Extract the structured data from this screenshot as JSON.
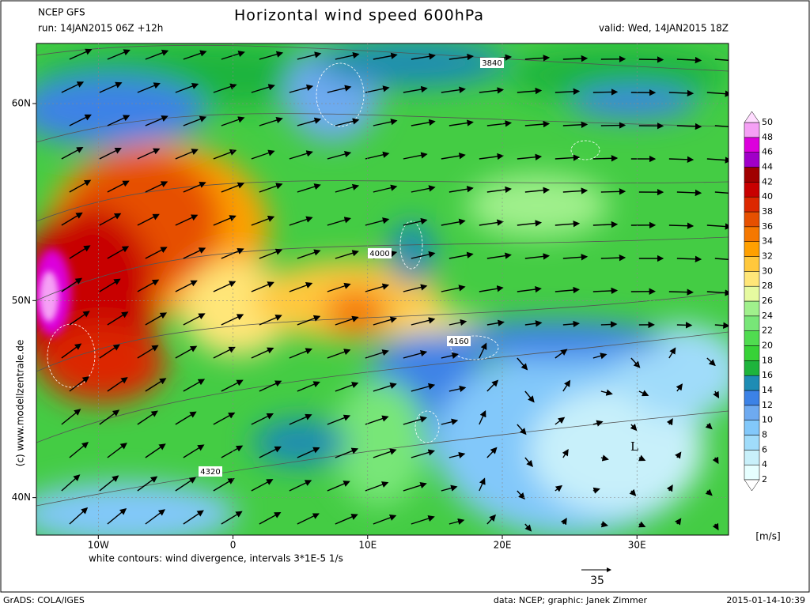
{
  "header": {
    "model": "NCEP GFS",
    "run": "run: 14JAN2015 06Z +12h",
    "title": "Horizontal wind speed 600hPa",
    "valid": "valid: Wed, 14JAN2015 18Z"
  },
  "map": {
    "xlim": [
      -14.6,
      36.8
    ],
    "ylim": [
      38.1,
      63.05
    ],
    "xticks": [
      {
        "value": -10,
        "label": "10W"
      },
      0,
      {
        "value": 10,
        "label": "10E"
      },
      {
        "value": 20,
        "label": "20E"
      },
      {
        "value": 30,
        "label": "30E"
      }
    ],
    "yticks": [
      {
        "value": 40,
        "label": "40N"
      },
      {
        "value": 50,
        "label": "50N"
      },
      {
        "value": 60,
        "label": "60N"
      }
    ],
    "contour_labels": [
      3840,
      4000,
      4160,
      4320
    ],
    "low_label": "L"
  },
  "colorbar": {
    "ticks": [
      2,
      4,
      6,
      8,
      10,
      12,
      14,
      16,
      18,
      20,
      22,
      24,
      26,
      28,
      30,
      32,
      34,
      36,
      38,
      40,
      42,
      44,
      46,
      48,
      50
    ],
    "colors": [
      "#e6ffff",
      "#c8f0fa",
      "#a0dcfa",
      "#82c8fa",
      "#6eaaf0",
      "#3c82e6",
      "#1e8cb4",
      "#1eb43c",
      "#37d237",
      "#50dc50",
      "#78e678",
      "#a0f08c",
      "#e6faa0",
      "#ffe678",
      "#ffc83c",
      "#ffa000",
      "#f57800",
      "#e65000",
      "#dc2800",
      "#c80000",
      "#a00000",
      "#a000c8",
      "#dc00dc",
      "#f5a0f5"
    ],
    "unit": "[m/s]"
  },
  "footer": {
    "note": "white contours: wind divergence, intervals 3*1E-5 1/s",
    "arrow_scale": 35,
    "copyright": "(c) www.modellzentrale.de",
    "software": "GrADS: COLA/IGES",
    "credit": "data: NCEP; graphic: Janek Zimmer",
    "timestamp": "2015-01-14-10:39"
  }
}
